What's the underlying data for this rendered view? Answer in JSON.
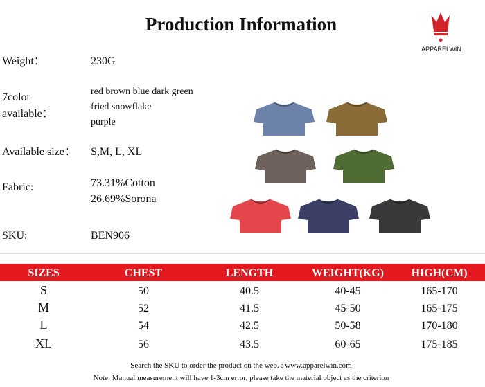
{
  "header": {
    "title": "Production Information",
    "logo": "APPARELWIN"
  },
  "specs": [
    {
      "label": [
        "Weight："
      ],
      "value": [
        "230G"
      ]
    },
    {
      "label": [
        "7color",
        "available："
      ],
      "value": [
        "red brown  blue dark  green",
        "fried snowflake",
        "purple"
      ]
    },
    {
      "label": [
        "Available size："
      ],
      "value": [
        "S,M, L, XL"
      ]
    },
    {
      "label": [
        "Fabric:"
      ],
      "value": [
        "73.31%Cotton",
        "26.69%Sorona"
      ]
    },
    {
      "label": [
        "SKU:"
      ],
      "value": [
        "BEN906"
      ]
    }
  ],
  "table": {
    "columns": [
      "SIZES",
      "CHEST",
      "LENGTH",
      "WEIGHT(KG)",
      "HIGH(CM)"
    ],
    "rows": [
      [
        "S",
        50,
        40.5,
        "40-45",
        "165-170"
      ],
      [
        "M",
        52,
        41.5,
        "45-50",
        "165-175"
      ],
      [
        "L",
        54,
        42.5,
        "50-58",
        "170-180"
      ],
      [
        "XL",
        56,
        43.5,
        "60-65",
        "175-185"
      ]
    ]
  },
  "footer": [
    "Search the SKU to order the product on the web. : www.apparelwin.com",
    "Note: Manual measurement will have 1-3cm error, please take the material object as the criterion"
  ]
}
